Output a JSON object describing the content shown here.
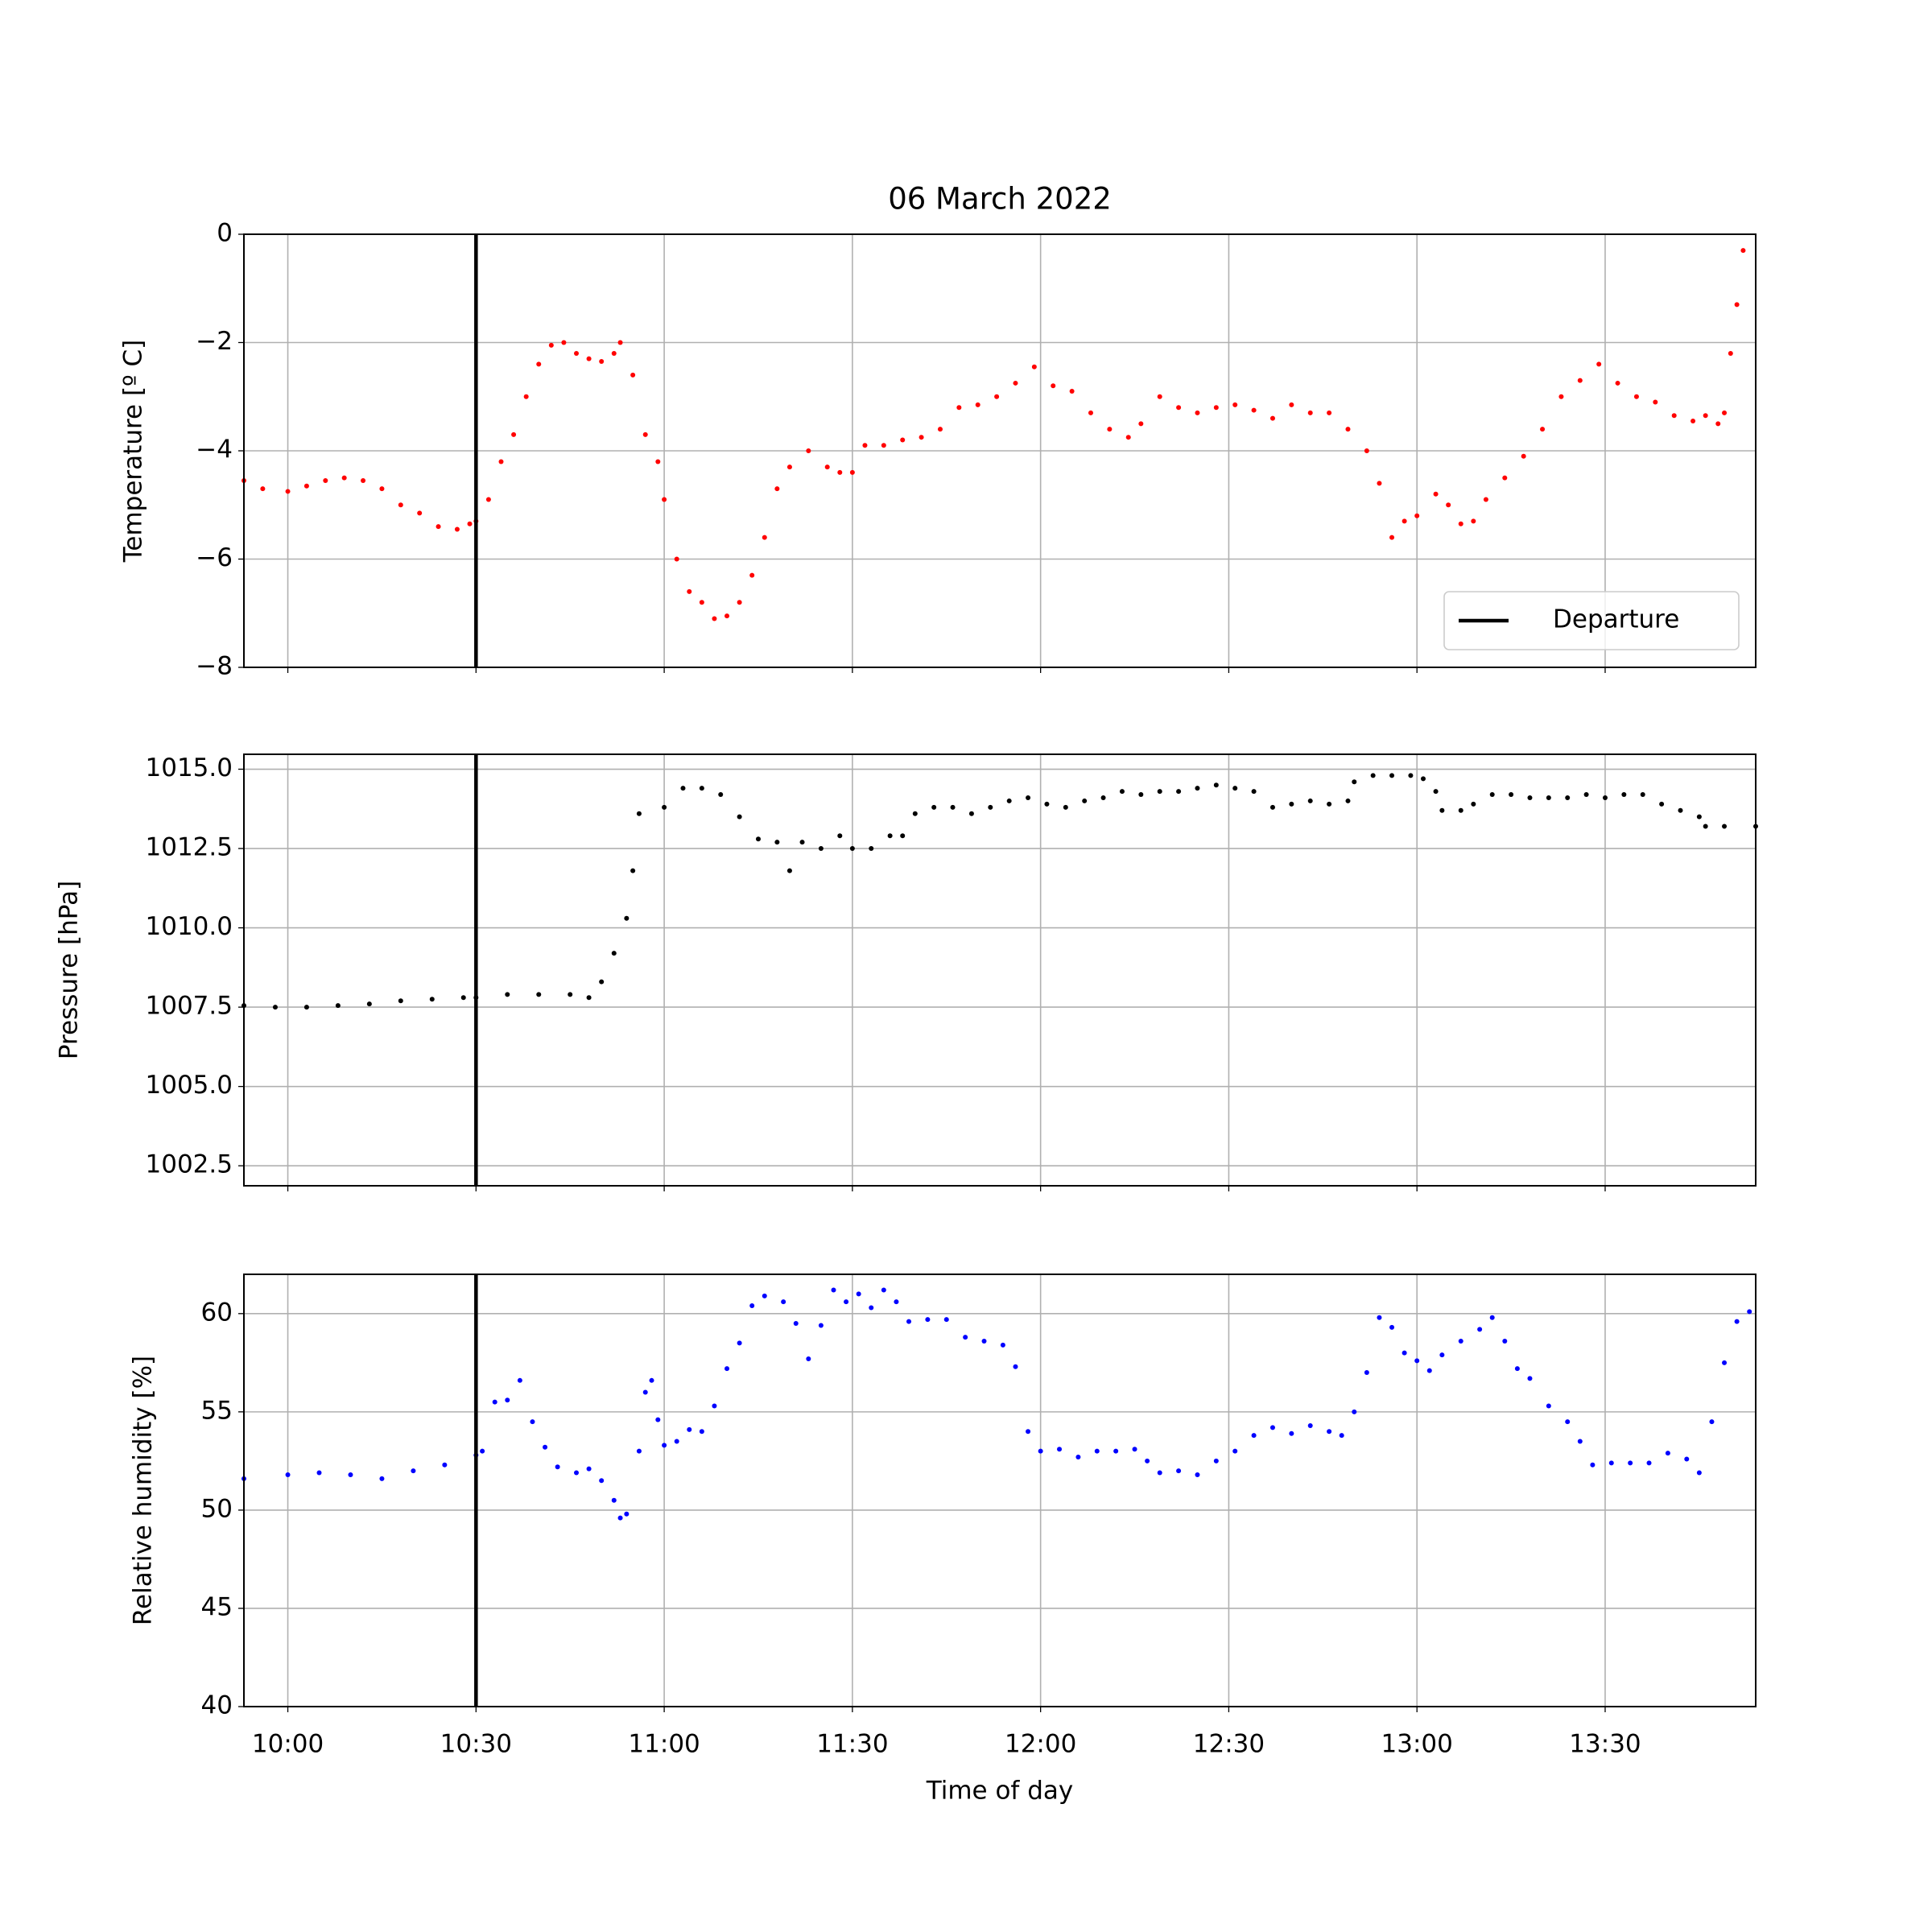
{
  "chart_data": [
    {
      "type": "scatter",
      "title": "06 March 2022",
      "ylabel": "Temperature [º C]",
      "color": "red",
      "x": [
        "09:53",
        "09:56",
        "10:00",
        "10:03",
        "10:06",
        "10:09",
        "10:12",
        "10:15",
        "10:18",
        "10:21",
        "10:24",
        "10:27",
        "10:29",
        "10:30",
        "10:32",
        "10:34",
        "10:36",
        "10:38",
        "10:40",
        "10:42",
        "10:44",
        "10:46",
        "10:48",
        "10:50",
        "10:52",
        "10:53",
        "10:55",
        "10:57",
        "10:59",
        "11:00",
        "11:02",
        "11:04",
        "11:06",
        "11:08",
        "11:10",
        "11:12",
        "11:14",
        "11:16",
        "11:18",
        "11:20",
        "11:23",
        "11:26",
        "11:28",
        "11:30",
        "11:32",
        "11:35",
        "11:38",
        "11:41",
        "11:44",
        "11:47",
        "11:50",
        "11:53",
        "11:56",
        "11:59",
        "12:02",
        "12:05",
        "12:08",
        "12:11",
        "12:14",
        "12:16",
        "12:19",
        "12:22",
        "12:25",
        "12:28",
        "12:31",
        "12:34",
        "12:37",
        "12:40",
        "12:43",
        "12:46",
        "12:49",
        "12:52",
        "12:54",
        "12:56",
        "12:58",
        "13:00",
        "13:03",
        "13:05",
        "13:07",
        "13:09",
        "13:11",
        "13:14",
        "13:17",
        "13:20",
        "13:23",
        "13:26",
        "13:29",
        "13:32",
        "13:35",
        "13:38",
        "13:41",
        "13:44",
        "13:46",
        "13:48",
        "13:49",
        "13:50",
        "13:51",
        "13:52"
      ],
      "values": [
        -4.55,
        -4.7,
        -4.75,
        -4.65,
        -4.55,
        -4.5,
        -4.55,
        -4.7,
        -5.0,
        -5.15,
        -5.4,
        -5.45,
        -5.35,
        -5.3,
        -4.9,
        -4.2,
        -3.7,
        -3.0,
        -2.4,
        -2.05,
        -2.0,
        -2.2,
        -2.3,
        -2.35,
        -2.2,
        -2.0,
        -2.6,
        -3.7,
        -4.2,
        -4.9,
        -6.0,
        -6.6,
        -6.8,
        -7.1,
        -7.05,
        -6.8,
        -6.3,
        -5.6,
        -4.7,
        -4.3,
        -4.0,
        -4.3,
        -4.4,
        -4.4,
        -3.9,
        -3.9,
        -3.8,
        -3.75,
        -3.6,
        -3.2,
        -3.15,
        -3.0,
        -2.75,
        -2.45,
        -2.8,
        -2.9,
        -3.3,
        -3.6,
        -3.75,
        -3.5,
        -3.0,
        -3.2,
        -3.3,
        -3.2,
        -3.15,
        -3.25,
        -3.4,
        -3.15,
        -3.3,
        -3.3,
        -3.6,
        -4.0,
        -4.6,
        -5.6,
        -5.3,
        -5.2,
        -4.8,
        -5.0,
        -5.35,
        -5.3,
        -4.9,
        -4.5,
        -4.1,
        -3.6,
        -3.0,
        -2.7,
        -2.4,
        -2.75,
        -3.0,
        -3.1,
        -3.35,
        -3.45,
        -3.35,
        -3.5,
        -3.3,
        -2.2,
        -1.3,
        -0.3
      ],
      "xlim": [
        "09:53",
        "13:54"
      ],
      "xticks": [
        "10:00",
        "10:30",
        "11:00",
        "11:30",
        "12:00",
        "12:30",
        "13:00",
        "13:30"
      ],
      "xticklabels": false,
      "ylim": [
        -8,
        0
      ],
      "yticks": [
        {
          "value": -8,
          "label": "−8"
        },
        {
          "value": -6,
          "label": "−6"
        },
        {
          "value": -4,
          "label": "−4"
        },
        {
          "value": -2,
          "label": "−2"
        },
        0
      ],
      "grid": true,
      "vline": {
        "x": "10:30",
        "name": "Departure",
        "color": "#000000"
      },
      "legend": "lower right"
    },
    {
      "type": "scatter",
      "ylabel": "Pressure [hPa]",
      "color": "black",
      "x": [
        "09:53",
        "09:58",
        "10:03",
        "10:08",
        "10:13",
        "10:18",
        "10:23",
        "10:28",
        "10:30",
        "10:35",
        "10:40",
        "10:45",
        "10:48",
        "10:50",
        "10:52",
        "10:54",
        "10:55",
        "10:56",
        "11:00",
        "11:03",
        "11:06",
        "11:09",
        "11:12",
        "11:15",
        "11:18",
        "11:20",
        "11:22",
        "11:25",
        "11:28",
        "11:30",
        "11:33",
        "11:36",
        "11:38",
        "11:40",
        "11:43",
        "11:46",
        "11:49",
        "11:52",
        "11:55",
        "11:58",
        "12:01",
        "12:04",
        "12:07",
        "12:10",
        "12:13",
        "12:16",
        "12:19",
        "12:22",
        "12:25",
        "12:28",
        "12:31",
        "12:34",
        "12:37",
        "12:40",
        "12:43",
        "12:46",
        "12:49",
        "12:50",
        "12:53",
        "12:56",
        "12:59",
        "13:01",
        "13:03",
        "13:04",
        "13:07",
        "13:09",
        "13:12",
        "13:15",
        "13:18",
        "13:21",
        "13:24",
        "13:27",
        "13:30",
        "13:33",
        "13:36",
        "13:39",
        "13:42",
        "13:45",
        "13:46",
        "13:49",
        "13:54"
      ],
      "values": [
        1007.55,
        1007.5,
        1007.5,
        1007.55,
        1007.6,
        1007.7,
        1007.75,
        1007.8,
        1007.8,
        1007.9,
        1007.9,
        1007.9,
        1007.8,
        1008.3,
        1009.2,
        1010.3,
        1011.8,
        1013.6,
        1013.8,
        1014.4,
        1014.4,
        1014.2,
        1013.5,
        1012.8,
        1012.7,
        1011.8,
        1012.7,
        1012.5,
        1012.9,
        1012.5,
        1012.5,
        1012.9,
        1012.9,
        1013.6,
        1013.8,
        1013.8,
        1013.6,
        1013.8,
        1014.0,
        1014.1,
        1013.9,
        1013.8,
        1014.0,
        1014.1,
        1014.3,
        1014.2,
        1014.3,
        1014.3,
        1014.4,
        1014.5,
        1014.4,
        1014.3,
        1013.8,
        1013.9,
        1014.0,
        1013.9,
        1014.0,
        1014.6,
        1014.8,
        1014.8,
        1014.8,
        1014.7,
        1014.3,
        1013.7,
        1013.7,
        1013.9,
        1014.2,
        1014.2,
        1014.1,
        1014.1,
        1014.1,
        1014.2,
        1014.1,
        1014.2,
        1014.2,
        1013.9,
        1013.7,
        1013.5,
        1013.2,
        1013.2,
        1013.2
      ],
      "xlim": [
        "09:53",
        "13:54"
      ],
      "xticks": [
        "10:00",
        "10:30",
        "11:00",
        "11:30",
        "12:00",
        "12:30",
        "13:00",
        "13:30"
      ],
      "xticklabels": false,
      "ylim": [
        1001.87,
        1015.47
      ],
      "yticks": [
        1002.5,
        {
          "value": 1005,
          "label": "1005.0"
        },
        1007.5,
        {
          "value": 1010,
          "label": "1010.0"
        },
        1012.5,
        {
          "value": 1015,
          "label": "1015.0"
        }
      ],
      "grid": true,
      "vline": {
        "x": "10:30",
        "color": "#000000"
      }
    },
    {
      "type": "scatter",
      "ylabel": "Relative humidity [%]",
      "xlabel": "Time of day",
      "color": "blue",
      "x": [
        "09:53",
        "10:00",
        "10:05",
        "10:10",
        "10:15",
        "10:20",
        "10:25",
        "10:30",
        "10:31",
        "10:33",
        "10:35",
        "10:37",
        "10:39",
        "10:41",
        "10:43",
        "10:46",
        "10:48",
        "10:50",
        "10:52",
        "10:53",
        "10:54",
        "10:56",
        "10:57",
        "10:58",
        "10:59",
        "11:00",
        "11:02",
        "11:04",
        "11:06",
        "11:08",
        "11:10",
        "11:12",
        "11:14",
        "11:16",
        "11:19",
        "11:21",
        "11:23",
        "11:25",
        "11:27",
        "11:29",
        "11:31",
        "11:33",
        "11:35",
        "11:37",
        "11:39",
        "11:42",
        "11:45",
        "11:48",
        "11:51",
        "11:54",
        "11:56",
        "11:58",
        "12:00",
        "12:03",
        "12:06",
        "12:09",
        "12:12",
        "12:15",
        "12:17",
        "12:19",
        "12:22",
        "12:25",
        "12:28",
        "12:31",
        "12:34",
        "12:37",
        "12:40",
        "12:43",
        "12:46",
        "12:48",
        "12:50",
        "12:52",
        "12:54",
        "12:56",
        "12:58",
        "13:00",
        "13:02",
        "13:04",
        "13:07",
        "13:10",
        "13:12",
        "13:14",
        "13:16",
        "13:18",
        "13:21",
        "13:24",
        "13:26",
        "13:28",
        "13:31",
        "13:34",
        "13:37",
        "13:40",
        "13:43",
        "13:45",
        "13:47",
        "13:49",
        "13:51",
        "13:53"
      ],
      "values": [
        51.6,
        51.8,
        51.9,
        51.8,
        51.6,
        52.0,
        52.3,
        52.8,
        53.0,
        55.5,
        55.6,
        56.6,
        54.5,
        53.2,
        52.2,
        51.9,
        52.1,
        51.5,
        50.5,
        49.6,
        49.8,
        53.0,
        56.0,
        56.6,
        54.6,
        53.3,
        53.5,
        54.1,
        54.0,
        55.3,
        57.2,
        58.5,
        60.4,
        60.9,
        60.6,
        59.5,
        57.7,
        59.4,
        61.2,
        60.6,
        61.0,
        60.3,
        61.2,
        60.6,
        59.6,
        59.7,
        59.7,
        58.8,
        58.6,
        58.4,
        57.3,
        54.0,
        53.0,
        53.1,
        52.7,
        53.0,
        53.0,
        53.1,
        52.5,
        51.9,
        52.0,
        51.8,
        52.5,
        53.0,
        53.8,
        54.2,
        53.9,
        54.3,
        54.0,
        53.8,
        55.0,
        57.0,
        59.8,
        59.3,
        58.0,
        57.6,
        57.1,
        57.9,
        58.6,
        59.2,
        59.8,
        58.6,
        57.2,
        56.7,
        55.3,
        54.5,
        53.5,
        52.3,
        52.4,
        52.4,
        52.4,
        52.9,
        52.6,
        51.9,
        54.5,
        57.5,
        59.6,
        60.1
      ],
      "xlim": [
        "09:53",
        "13:54"
      ],
      "xticks": [
        "10:00",
        "10:30",
        "11:00",
        "11:30",
        "12:00",
        "12:30",
        "13:00",
        "13:30"
      ],
      "xticklabels": true,
      "ylim": [
        40,
        62
      ],
      "yticks": [
        40,
        45,
        50,
        55,
        60
      ],
      "grid": true,
      "vline": {
        "x": "10:30",
        "color": "#000000"
      }
    }
  ]
}
